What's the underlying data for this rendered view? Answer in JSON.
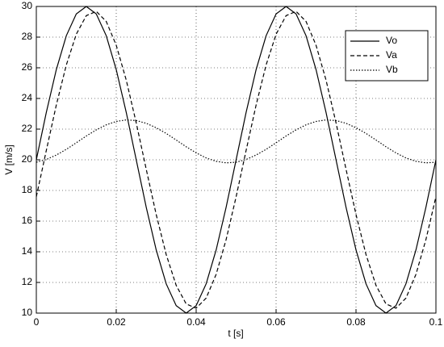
{
  "chart_data": {
    "type": "line",
    "xlabel": "t [s]",
    "ylabel": "V [m/s]",
    "x": [
      0,
      0.0025,
      0.005,
      0.0075,
      0.01,
      0.0125,
      0.015,
      0.0175,
      0.02,
      0.0225,
      0.025,
      0.0275,
      0.03,
      0.0325,
      0.035,
      0.0375,
      0.04,
      0.0425,
      0.045,
      0.0475,
      0.05,
      0.0525,
      0.055,
      0.0575,
      0.06,
      0.0625,
      0.065,
      0.0675,
      0.07,
      0.0725,
      0.075,
      0.0775,
      0.08,
      0.0825,
      0.085,
      0.0875,
      0.09,
      0.0925,
      0.095,
      0.0975,
      0.1
    ],
    "series": [
      {
        "name": "Vo",
        "color": "#000000",
        "style": "solid",
        "values": [
          20,
          23.09,
          25.88,
          28.09,
          29.51,
          30,
          29.51,
          28.09,
          25.88,
          23.09,
          20,
          16.91,
          14.12,
          11.91,
          10.49,
          10,
          10.49,
          11.91,
          14.12,
          16.91,
          20,
          23.09,
          25.88,
          28.09,
          29.51,
          30,
          29.51,
          28.09,
          25.88,
          23.09,
          20,
          16.91,
          14.12,
          11.91,
          10.49,
          10,
          10.49,
          11.91,
          14.12,
          16.91,
          20
        ]
      },
      {
        "name": "Va",
        "color": "#000000",
        "style": "dashed",
        "values": [
          17.59,
          20.61,
          23.57,
          26.18,
          28.19,
          29.4,
          29.68,
          29.02,
          27.47,
          25.2,
          22.41,
          19.39,
          16.43,
          13.82,
          11.81,
          10.6,
          10.32,
          10.98,
          12.53,
          14.8,
          17.59,
          20.61,
          23.57,
          26.18,
          28.19,
          29.4,
          29.68,
          29.02,
          27.47,
          25.2,
          22.41,
          19.39,
          16.43,
          13.82,
          11.81,
          10.6,
          10.32,
          10.98,
          12.53,
          14.8,
          17.59
        ]
      },
      {
        "name": "Vb",
        "color": "#000000",
        "style": "dotted",
        "values": [
          19.84,
          20.02,
          20.31,
          20.68,
          21.11,
          21.55,
          21.95,
          22.28,
          22.5,
          22.6,
          22.56,
          22.38,
          22.09,
          21.72,
          21.29,
          20.85,
          20.45,
          20.12,
          19.9,
          19.8,
          19.84,
          20.02,
          20.31,
          20.68,
          21.11,
          21.55,
          21.95,
          22.28,
          22.5,
          22.6,
          22.56,
          22.38,
          22.09,
          21.72,
          21.29,
          20.85,
          20.45,
          20.12,
          19.9,
          19.8,
          19.84
        ]
      }
    ],
    "xlim": [
      0,
      0.1
    ],
    "xticks": [
      0,
      0.02,
      0.04,
      0.06,
      0.08,
      0.1
    ],
    "ylim": [
      10,
      30
    ],
    "yticks": [
      10,
      12,
      14,
      16,
      18,
      20,
      22,
      24,
      26,
      28,
      30
    ],
    "grid": true,
    "legend": "upper-right"
  }
}
